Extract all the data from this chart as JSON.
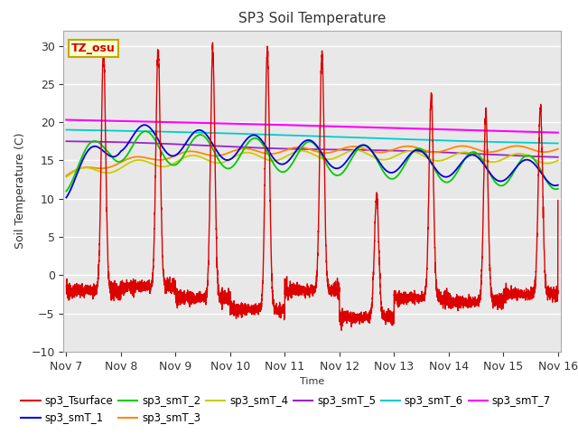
{
  "title": "SP3 Soil Temperature",
  "xlabel": "Time",
  "ylabel": "Soil Temperature (C)",
  "ylim": [
    -10,
    32
  ],
  "yticks": [
    -10,
    -5,
    0,
    5,
    10,
    15,
    20,
    25,
    30
  ],
  "x_tick_labels": [
    "Nov 7",
    "Nov 8",
    "Nov 9",
    "Nov 10",
    "Nov 11",
    "Nov 12",
    "Nov 13",
    "Nov 14",
    "Nov 15",
    "Nov 16"
  ],
  "x_tick_positions": [
    0,
    1,
    2,
    3,
    4,
    5,
    6,
    7,
    8,
    9
  ],
  "tz_label": "TZ_osu",
  "figure_bg": "#ffffff",
  "plot_bg": "#e8e8e8",
  "grid_color": "#ffffff",
  "series_colors": {
    "sp3_Tsurface": "#dd0000",
    "sp3_smT_1": "#0000dd",
    "sp3_smT_2": "#00cc00",
    "sp3_smT_3": "#ff8800",
    "sp3_smT_4": "#cccc00",
    "sp3_smT_5": "#9922cc",
    "sp3_smT_6": "#00cccc",
    "sp3_smT_7": "#ff00ff"
  }
}
